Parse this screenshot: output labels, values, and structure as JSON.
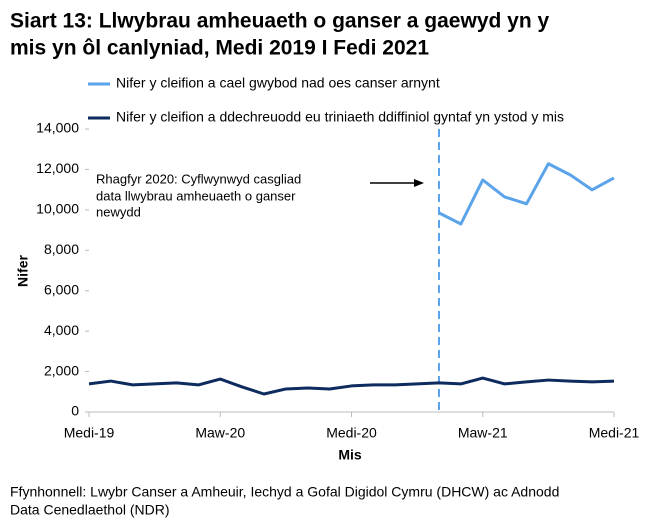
{
  "chart_data": {
    "type": "line",
    "title": [
      "Siart 13: Llwybrau amheuaeth o ganser a gaewyd yn y",
      "mis yn ôl canlyniad, Medi 2019 I Fedi 2021"
    ],
    "categories": [
      "Medi-19",
      null,
      null,
      null,
      null,
      null,
      "Maw-20",
      null,
      null,
      null,
      null,
      null,
      "Medi-20",
      null,
      null,
      null,
      null,
      null,
      "Maw-21",
      null,
      null,
      null,
      null,
      null,
      "Medi-21"
    ],
    "series": [
      {
        "name": "Nifer y cleifion a cael gwybod nad oes canser arnynt",
        "color": "#5ba3ea",
        "values": [
          null,
          null,
          null,
          null,
          null,
          null,
          null,
          null,
          null,
          null,
          null,
          null,
          null,
          null,
          null,
          null,
          9850,
          9300,
          11480,
          10640,
          10300,
          12280,
          11730,
          10990,
          11580
        ]
      },
      {
        "name": "Nifer y cleifion a ddechreuodd eu triniaeth ddiffiniol gyntaf yn ystod y mis",
        "color": "#0d2b5e",
        "values": [
          1390,
          1530,
          1340,
          1390,
          1440,
          1340,
          1630,
          1240,
          890,
          1140,
          1190,
          1140,
          1290,
          1340,
          1340,
          1390,
          1440,
          1390,
          1680,
          1390,
          1490,
          1580,
          1530,
          1490,
          1530
        ]
      }
    ],
    "ylim": [
      0,
      14000
    ],
    "yticks": [
      0,
      {
        "value": 2000,
        "label": "2,000"
      },
      {
        "value": 4000,
        "label": "4,000"
      },
      {
        "value": 6000,
        "label": "6,000"
      },
      {
        "value": 8000,
        "label": "8,000"
      },
      {
        "value": 10000,
        "label": "10,000"
      },
      {
        "value": 12000,
        "label": "12,000"
      },
      {
        "value": 14000,
        "label": "14,000"
      }
    ],
    "ylabel": "Nifer",
    "xlabel": "Mis",
    "annotation": [
      "Rhagfyr 2020: Cyflwynwyd casgliad",
      "data llwybrau amheuaeth o ganser",
      "newydd"
    ],
    "source": [
      "Ffynhonnell: Lwybr Canser a Amheuir, Iechyd a Gofal Digidol Cymru (DHCW) ac Adnodd",
      "Data Cenedlaethol (NDR)"
    ],
    "legend": "top",
    "grid": false
  }
}
